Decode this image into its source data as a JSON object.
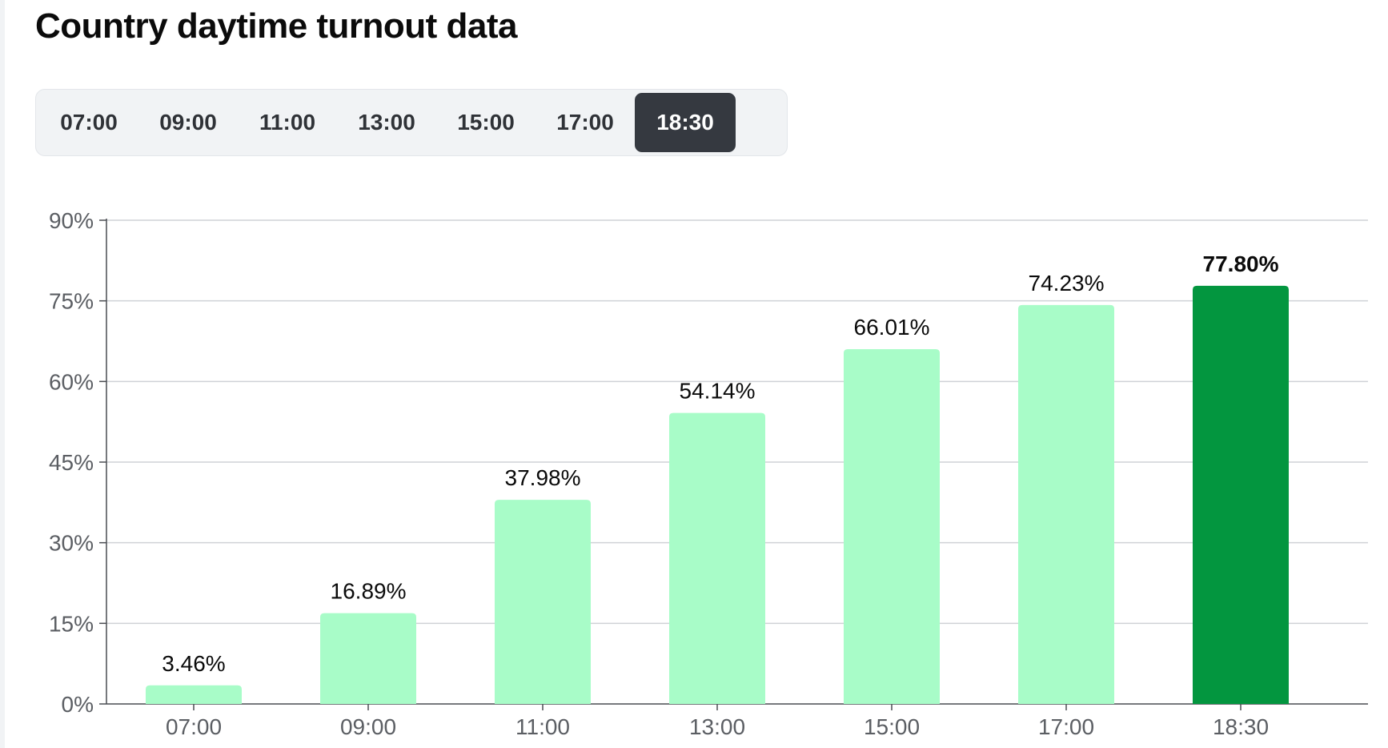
{
  "title": "Country daytime turnout data",
  "tabs": [
    {
      "label": "07:00",
      "active": false
    },
    {
      "label": "09:00",
      "active": false
    },
    {
      "label": "11:00",
      "active": false
    },
    {
      "label": "13:00",
      "active": false
    },
    {
      "label": "15:00",
      "active": false
    },
    {
      "label": "17:00",
      "active": false
    },
    {
      "label": "18:30",
      "active": true
    }
  ],
  "colors": {
    "bar": "#a8fcc8",
    "bar_selected": "#03963f",
    "grid": "#cfd2d6",
    "axis": "#4a4d52",
    "tab_active_bg": "#353940"
  },
  "chart_data": {
    "type": "bar",
    "categories": [
      "07:00",
      "09:00",
      "11:00",
      "13:00",
      "15:00",
      "17:00",
      "18:30"
    ],
    "values": [
      3.46,
      16.89,
      37.98,
      54.14,
      66.01,
      74.23,
      77.8
    ],
    "value_labels": [
      "3.46%",
      "16.89%",
      "37.98%",
      "54.14%",
      "66.01%",
      "74.23%",
      "77.80%"
    ],
    "selected_index": 6,
    "ylim": [
      0,
      90
    ],
    "yticks": [
      0,
      15,
      30,
      45,
      60,
      75,
      90
    ],
    "ytick_labels": [
      "0%",
      "15%",
      "30%",
      "45%",
      "60%",
      "75%",
      "90%"
    ],
    "xlabel": "",
    "ylabel": "",
    "grid": true
  }
}
